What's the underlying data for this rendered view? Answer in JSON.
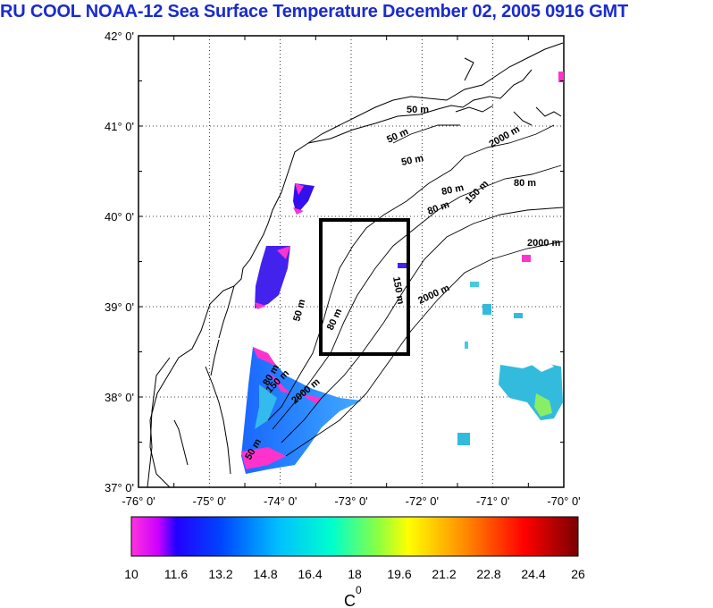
{
  "title": "RU COOL  NOAA-12 Sea Surface Temperature December 02, 2005 0916 GMT",
  "map": {
    "lat_labels": [
      "42° 0'",
      "41° 0'",
      "40° 0'",
      "39° 0'",
      "38° 0'",
      "37° 0'"
    ],
    "lon_labels": [
      "-76° 0'",
      "-75° 0'",
      "-74° 0'",
      "-73° 0'",
      "-72° 0'",
      "-71° 0'",
      "-70° 0'"
    ],
    "lat_range": [
      37,
      42
    ],
    "lon_range": [
      -76,
      -70
    ],
    "grid": "dotted",
    "contour_labels": [
      "50 m",
      "50 m",
      "50 m",
      "80 m",
      "80 m",
      "80 m",
      "150 m",
      "2000 m",
      "2000 m",
      "50 m",
      "80 m",
      "150 m",
      "2000 m",
      "50 m",
      "80 m",
      "150 m",
      "2000 m"
    ],
    "study_box": {
      "lon": [
        -73.4,
        -72.4
      ],
      "lat": [
        38.5,
        40.0
      ]
    }
  },
  "colorbar": {
    "tick_labels": [
      "10",
      "11.6",
      "13.2",
      "14.8",
      "16.4",
      "18",
      "19.6",
      "21.2",
      "22.8",
      "24.4",
      "26"
    ],
    "range": [
      10,
      26
    ],
    "unit_label": "C",
    "unit_superscript": "0",
    "colors": [
      "#ff33cc",
      "#3300ff",
      "#0066ff",
      "#00bbff",
      "#00ffcc",
      "#88ff44",
      "#ffff00",
      "#ff8800",
      "#ff0000",
      "#800000"
    ]
  }
}
